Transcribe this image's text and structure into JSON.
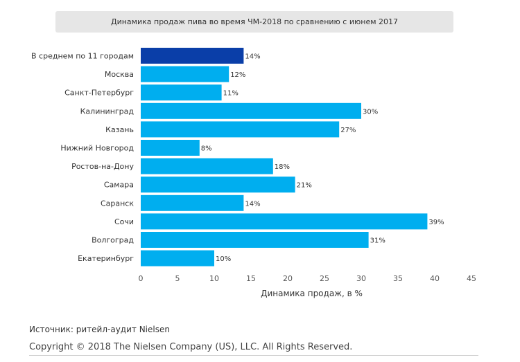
{
  "chart_data": {
    "type": "bar",
    "orientation": "horizontal",
    "title": "Динамика продаж пива во время ЧМ-2018 по сравнению с июнем 2017",
    "categories": [
      "В среднем по 11 городам",
      "Москва",
      "Санкт-Петербург",
      "Калининград",
      "Казань",
      "Нижний Новгород",
      "Ростов-на-Дону",
      "Самара",
      "Саранск",
      "Сочи",
      "Волгоград",
      "Екатеринбург"
    ],
    "values": [
      14,
      12,
      11,
      30,
      27,
      8,
      18,
      21,
      14,
      39,
      31,
      10
    ],
    "value_labels": [
      "14%",
      "12%",
      "11%",
      "30%",
      "27%",
      "8%",
      "18%",
      "21%",
      "14%",
      "39%",
      "31%",
      "10%"
    ],
    "xlabel": "Динамика продаж, в %",
    "ylabel": "",
    "xlim": [
      0,
      45
    ],
    "xticks": [
      "0",
      "5",
      "10",
      "15",
      "20",
      "25",
      "30",
      "35",
      "40",
      "45"
    ],
    "grid": false,
    "colors": {
      "highlight": "#0a3ea8",
      "bar": "#00aeef"
    },
    "highlight_index": 0
  },
  "footer": {
    "source": "Источник: ритейл-аудит Nielsen",
    "copyright": "Copyright © 2018 The Nielsen Company (US), LLC. All Rights Reserved."
  }
}
